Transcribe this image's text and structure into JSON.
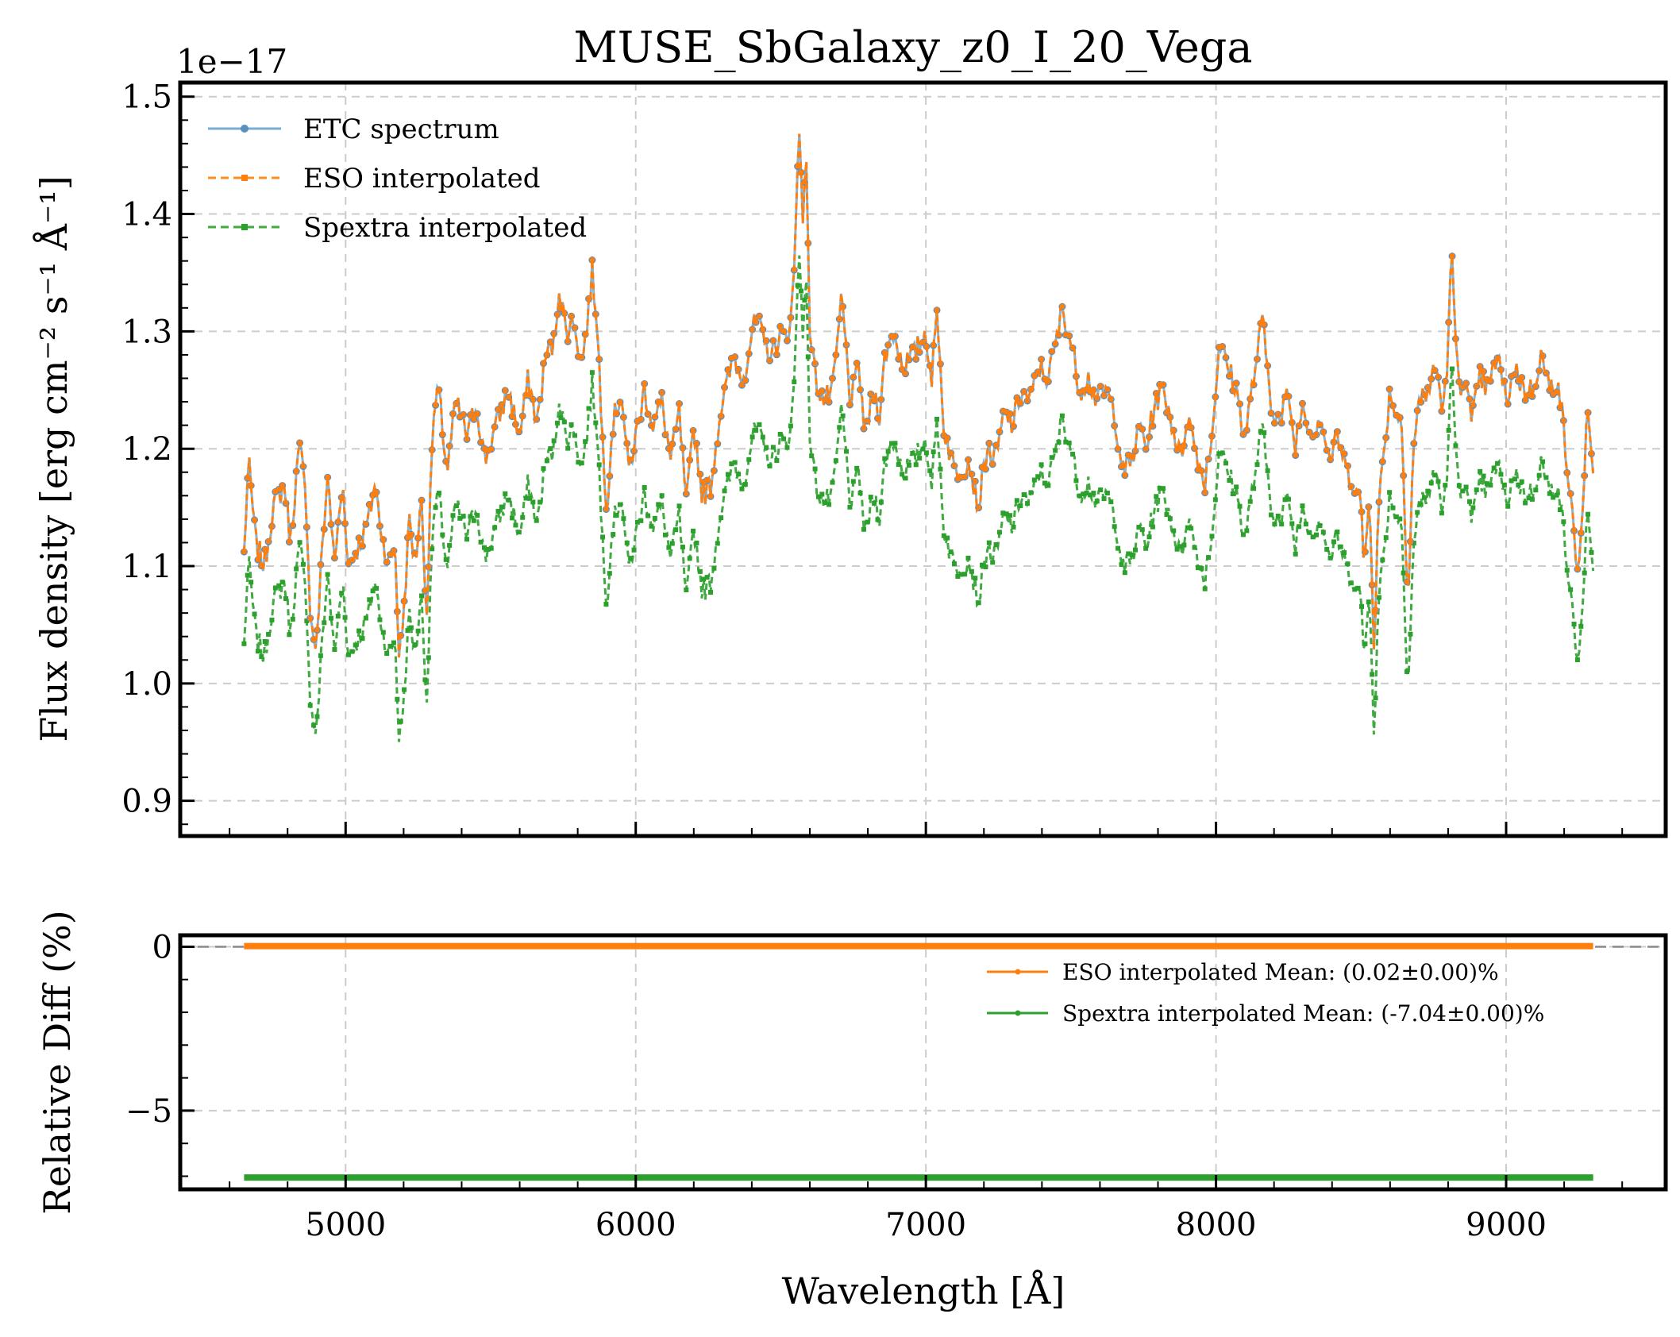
{
  "chart_data": [
    {
      "type": "line",
      "title": "MUSE_SbGalaxy_z0_I_20_Vega",
      "offset_label": "1e−17",
      "xlabel": "",
      "ylabel": "Flux density [erg cm⁻² s⁻¹ Å⁻¹]",
      "xlim": [
        4430,
        9550
      ],
      "ylim": [
        0.87,
        1.512
      ],
      "x_ticks": [
        5000,
        6000,
        7000,
        8000,
        9000
      ],
      "y_ticks": [
        0.9,
        1.0,
        1.1,
        1.2,
        1.3,
        1.4,
        1.5
      ],
      "y_tick_labels": [
        "0.9",
        "1.0",
        "1.1",
        "1.2",
        "1.3",
        "1.4",
        "1.5"
      ],
      "grid": true,
      "legend_position": "top-left",
      "x_step": 6,
      "series": [
        {
          "name": "ETC spectrum",
          "color": "#1f77b4",
          "style": "solid",
          "anchors": [
            [
              4650,
              1.11
            ],
            [
              4665,
              1.19
            ],
            [
              4690,
              1.12
            ],
            [
              4720,
              1.1
            ],
            [
              4750,
              1.15
            ],
            [
              4790,
              1.17
            ],
            [
              4810,
              1.12
            ],
            [
              4835,
              1.19
            ],
            [
              4845,
              1.2
            ],
            [
              4865,
              1.15
            ],
            [
              4880,
              1.05
            ],
            [
              4900,
              1.03
            ],
            [
              4920,
              1.12
            ],
            [
              4940,
              1.18
            ],
            [
              4960,
              1.1
            ],
            [
              4990,
              1.17
            ],
            [
              5010,
              1.1
            ],
            [
              5050,
              1.12
            ],
            [
              5080,
              1.14
            ],
            [
              5100,
              1.17
            ],
            [
              5130,
              1.12
            ],
            [
              5150,
              1.1
            ],
            [
              5170,
              1.12
            ],
            [
              5185,
              1.02
            ],
            [
              5200,
              1.06
            ],
            [
              5220,
              1.14
            ],
            [
              5240,
              1.1
            ],
            [
              5260,
              1.16
            ],
            [
              5280,
              1.06
            ],
            [
              5300,
              1.22
            ],
            [
              5320,
              1.25
            ],
            [
              5350,
              1.18
            ],
            [
              5380,
              1.24
            ],
            [
              5420,
              1.21
            ],
            [
              5450,
              1.24
            ],
            [
              5480,
              1.19
            ],
            [
              5520,
              1.22
            ],
            [
              5560,
              1.25
            ],
            [
              5600,
              1.21
            ],
            [
              5630,
              1.26
            ],
            [
              5660,
              1.22
            ],
            [
              5690,
              1.28
            ],
            [
              5720,
              1.29
            ],
            [
              5735,
              1.34
            ],
            [
              5760,
              1.3
            ],
            [
              5790,
              1.31
            ],
            [
              5810,
              1.27
            ],
            [
              5830,
              1.3
            ],
            [
              5850,
              1.35
            ],
            [
              5870,
              1.3
            ],
            [
              5880,
              1.23
            ],
            [
              5900,
              1.15
            ],
            [
              5920,
              1.22
            ],
            [
              5950,
              1.25
            ],
            [
              5975,
              1.18
            ],
            [
              6000,
              1.21
            ],
            [
              6030,
              1.25
            ],
            [
              6060,
              1.22
            ],
            [
              6090,
              1.24
            ],
            [
              6120,
              1.19
            ],
            [
              6150,
              1.23
            ],
            [
              6175,
              1.15
            ],
            [
              6200,
              1.22
            ],
            [
              6230,
              1.16
            ],
            [
              6260,
              1.17
            ],
            [
              6290,
              1.23
            ],
            [
              6310,
              1.25
            ],
            [
              6340,
              1.28
            ],
            [
              6360,
              1.26
            ],
            [
              6380,
              1.27
            ],
            [
              6400,
              1.3
            ],
            [
              6420,
              1.31
            ],
            [
              6440,
              1.29
            ],
            [
              6470,
              1.28
            ],
            [
              6500,
              1.3
            ],
            [
              6520,
              1.29
            ],
            [
              6545,
              1.34
            ],
            [
              6555,
              1.42
            ],
            [
              6565,
              1.48
            ],
            [
              6575,
              1.4
            ],
            [
              6590,
              1.44
            ],
            [
              6600,
              1.3
            ],
            [
              6620,
              1.26
            ],
            [
              6650,
              1.24
            ],
            [
              6680,
              1.25
            ],
            [
              6710,
              1.33
            ],
            [
              6740,
              1.24
            ],
            [
              6770,
              1.27
            ],
            [
              6790,
              1.21
            ],
            [
              6820,
              1.25
            ],
            [
              6840,
              1.23
            ],
            [
              6860,
              1.28
            ],
            [
              6890,
              1.3
            ],
            [
              6920,
              1.27
            ],
            [
              6960,
              1.28
            ],
            [
              7000,
              1.3
            ],
            [
              7020,
              1.26
            ],
            [
              7040,
              1.32
            ],
            [
              7060,
              1.22
            ],
            [
              7100,
              1.18
            ],
            [
              7150,
              1.19
            ],
            [
              7180,
              1.15
            ],
            [
              7210,
              1.2
            ],
            [
              7240,
              1.19
            ],
            [
              7270,
              1.23
            ],
            [
              7300,
              1.22
            ],
            [
              7330,
              1.25
            ],
            [
              7360,
              1.24
            ],
            [
              7390,
              1.27
            ],
            [
              7420,
              1.26
            ],
            [
              7450,
              1.29
            ],
            [
              7470,
              1.32
            ],
            [
              7500,
              1.29
            ],
            [
              7530,
              1.25
            ],
            [
              7560,
              1.26
            ],
            [
              7590,
              1.24
            ],
            [
              7620,
              1.25
            ],
            [
              7650,
              1.23
            ],
            [
              7680,
              1.18
            ],
            [
              7710,
              1.19
            ],
            [
              7740,
              1.22
            ],
            [
              7760,
              1.2
            ],
            [
              7790,
              1.24
            ],
            [
              7820,
              1.25
            ],
            [
              7850,
              1.22
            ],
            [
              7880,
              1.19
            ],
            [
              7900,
              1.23
            ],
            [
              7930,
              1.2
            ],
            [
              7960,
              1.17
            ],
            [
              7990,
              1.22
            ],
            [
              8010,
              1.29
            ],
            [
              8040,
              1.27
            ],
            [
              8070,
              1.25
            ],
            [
              8100,
              1.21
            ],
            [
              8130,
              1.26
            ],
            [
              8160,
              1.31
            ],
            [
              8190,
              1.24
            ],
            [
              8220,
              1.22
            ],
            [
              8250,
              1.25
            ],
            [
              8270,
              1.2
            ],
            [
              8300,
              1.24
            ],
            [
              8330,
              1.21
            ],
            [
              8360,
              1.23
            ],
            [
              8390,
              1.19
            ],
            [
              8420,
              1.21
            ],
            [
              8450,
              1.18
            ],
            [
              8480,
              1.17
            ],
            [
              8500,
              1.15
            ],
            [
              8510,
              1.1
            ],
            [
              8530,
              1.16
            ],
            [
              8545,
              1.03
            ],
            [
              8560,
              1.15
            ],
            [
              8580,
              1.2
            ],
            [
              8600,
              1.25
            ],
            [
              8620,
              1.23
            ],
            [
              8640,
              1.22
            ],
            [
              8662,
              1.07
            ],
            [
              8680,
              1.2
            ],
            [
              8700,
              1.24
            ],
            [
              8730,
              1.25
            ],
            [
              8760,
              1.27
            ],
            [
              8780,
              1.23
            ],
            [
              8800,
              1.28
            ],
            [
              8810,
              1.38
            ],
            [
              8820,
              1.32
            ],
            [
              8840,
              1.24
            ],
            [
              8860,
              1.27
            ],
            [
              8880,
              1.22
            ],
            [
              8910,
              1.26
            ],
            [
              8940,
              1.25
            ],
            [
              8970,
              1.28
            ],
            [
              9000,
              1.24
            ],
            [
              9030,
              1.27
            ],
            [
              9060,
              1.25
            ],
            [
              9090,
              1.25
            ],
            [
              9120,
              1.28
            ],
            [
              9150,
              1.25
            ],
            [
              9180,
              1.26
            ],
            [
              9200,
              1.21
            ],
            [
              9220,
              1.16
            ],
            [
              9250,
              1.09
            ],
            [
              9265,
              1.16
            ],
            [
              9280,
              1.23
            ],
            [
              9300,
              1.17
            ]
          ]
        },
        {
          "name": "ESO interpolated",
          "color": "#ff7f0e",
          "style": "dashed",
          "offset": 0.0002
        },
        {
          "name": "Spextra interpolated",
          "color": "#2ca02c",
          "style": "dashed",
          "scale": 0.9296
        }
      ]
    },
    {
      "type": "line",
      "title": "",
      "xlabel": "Wavelength [Å]",
      "ylabel": "Relative Diff (%)",
      "xlim": [
        4430,
        9550
      ],
      "ylim": [
        -7.4,
        0.35
      ],
      "x_ticks": [
        5000,
        6000,
        7000,
        8000,
        9000
      ],
      "x_tick_labels": [
        "5000",
        "6000",
        "7000",
        "8000",
        "9000"
      ],
      "y_ticks": [
        0,
        -5
      ],
      "y_tick_labels": [
        "0",
        "−5"
      ],
      "grid": true,
      "legend_position": "upper-right",
      "reference_line": 0,
      "series": [
        {
          "name": "ESO interpolated Mean: (0.02±0.00)%",
          "color": "#ff7f0e",
          "x": [
            4650,
            9300
          ],
          "y": [
            0.02,
            0.02
          ]
        },
        {
          "name": "Spextra interpolated Mean: (-7.04±0.00)%",
          "color": "#2ca02c",
          "x": [
            4650,
            9300
          ],
          "y": [
            -7.04,
            -7.04
          ]
        }
      ]
    }
  ]
}
